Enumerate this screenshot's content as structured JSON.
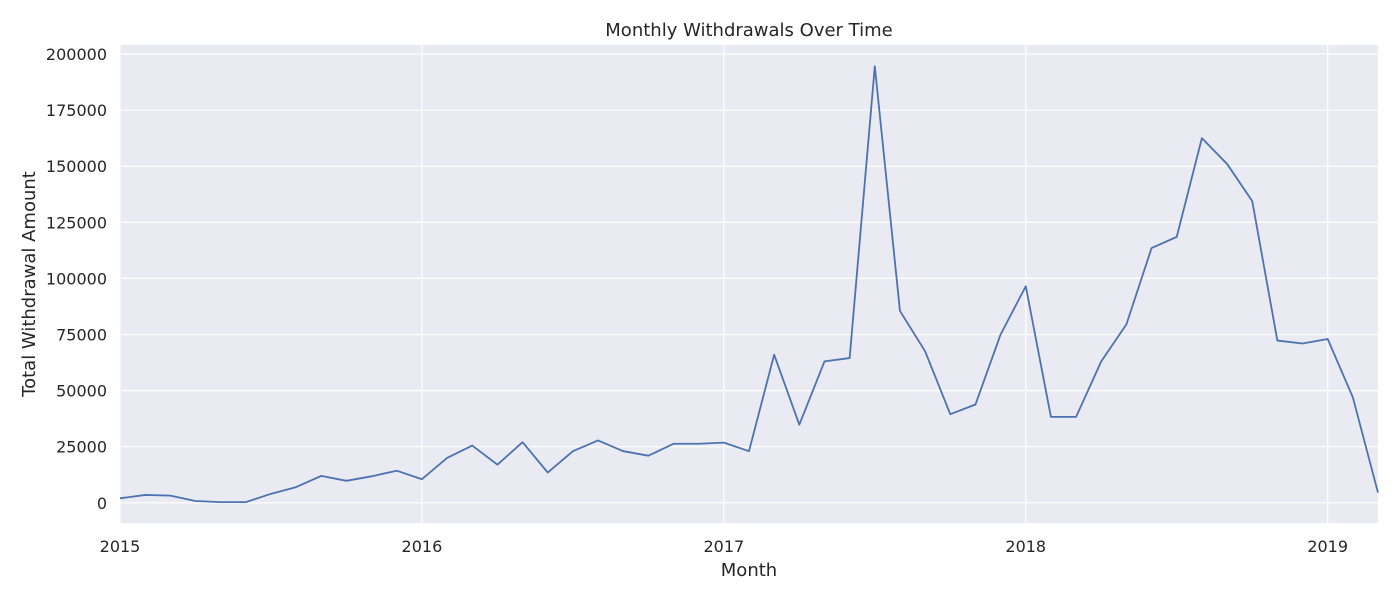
{
  "chart_data": {
    "type": "line",
    "title": "Monthly Withdrawals Over Time",
    "xlabel": "Month",
    "ylabel": "Total Withdrawal Amount",
    "x_tick_labels": [
      "2015",
      "2016",
      "2017",
      "2018",
      "2019"
    ],
    "y_tick_labels": [
      "0",
      "25000",
      "50000",
      "75000",
      "100000",
      "125000",
      "150000",
      "175000",
      "200000"
    ],
    "xlim": [
      "2015-01",
      "2019-03"
    ],
    "ylim": [
      -9000,
      204000
    ],
    "grid": true,
    "colors": {
      "line": "#4c72b0",
      "plot_background": "#eaeaf2",
      "grid": "#ffffff"
    },
    "x": [
      "2015-01",
      "2015-02",
      "2015-03",
      "2015-04",
      "2015-05",
      "2015-06",
      "2015-07",
      "2015-08",
      "2015-09",
      "2015-10",
      "2015-11",
      "2015-12",
      "2016-01",
      "2016-02",
      "2016-03",
      "2016-04",
      "2016-05",
      "2016-06",
      "2016-07",
      "2016-08",
      "2016-09",
      "2016-10",
      "2016-11",
      "2016-12",
      "2017-01",
      "2017-02",
      "2017-03",
      "2017-04",
      "2017-05",
      "2017-06",
      "2017-07",
      "2017-08",
      "2017-09",
      "2017-10",
      "2017-11",
      "2017-12",
      "2018-01",
      "2018-02",
      "2018-03",
      "2018-04",
      "2018-05",
      "2018-06",
      "2018-07",
      "2018-08",
      "2018-09",
      "2018-10",
      "2018-11",
      "2018-12",
      "2019-01",
      "2019-02",
      "2019-03"
    ],
    "values": [
      2000,
      3500,
      3200,
      800,
      300,
      300,
      4000,
      7000,
      12000,
      9800,
      11800,
      14300,
      10500,
      20000,
      25500,
      17000,
      27000,
      13500,
      23000,
      27800,
      23000,
      21000,
      26300,
      26300,
      26800,
      23000,
      66000,
      34800,
      63000,
      64500,
      194500,
      85500,
      67500,
      39500,
      43800,
      75000,
      96500,
      38300,
      38300,
      63000,
      79500,
      113500,
      118500,
      162500,
      151000,
      134500,
      72300,
      71000,
      73000,
      47000,
      4500
    ]
  }
}
